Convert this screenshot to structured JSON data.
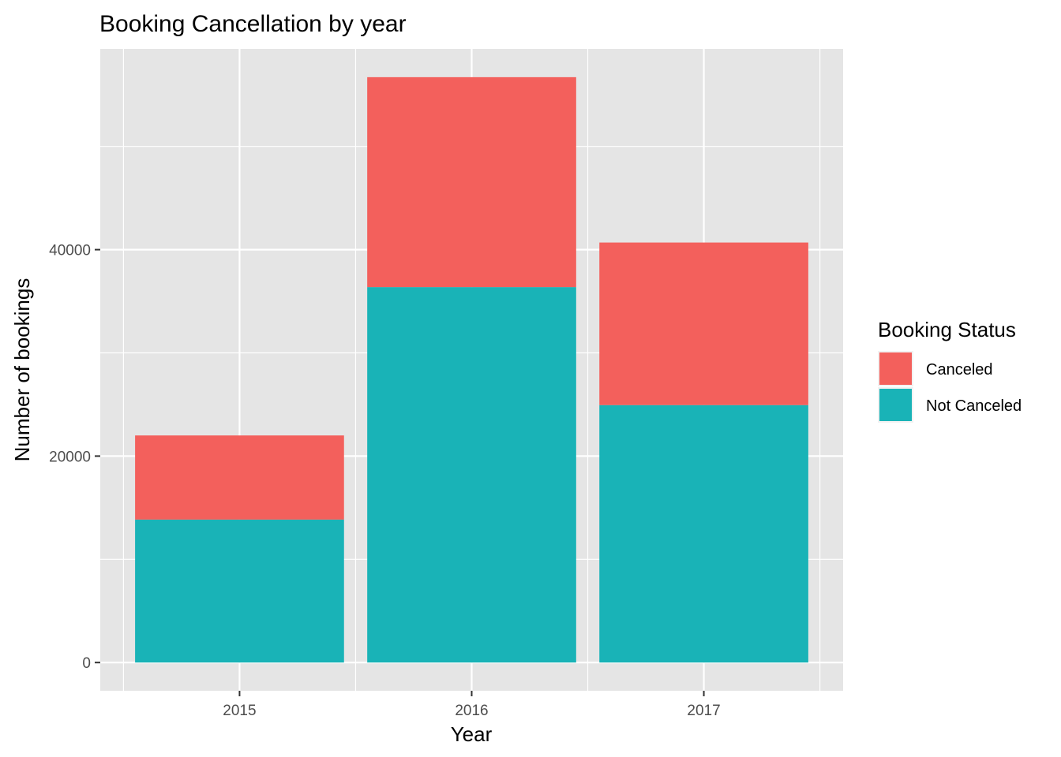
{
  "chart_data": {
    "type": "bar",
    "stacked": true,
    "title": "Booking Cancellation by year",
    "xlabel": "Year",
    "ylabel": "Number of bookings",
    "categories": [
      "2015",
      "2016",
      "2017"
    ],
    "series": [
      {
        "name": "Not Canceled",
        "color": "#19b3b7",
        "values": [
          13850,
          36370,
          24940
        ]
      },
      {
        "name": "Canceled",
        "color": "#f3605c",
        "values": [
          8150,
          20340,
          15750
        ]
      }
    ],
    "y_ticks": [
      0,
      20000,
      40000
    ],
    "ylim": [
      -2735,
      59450
    ],
    "grid": true,
    "legend": {
      "title": "Booking Status",
      "position": "right",
      "entries": [
        "Canceled",
        "Not Canceled"
      ]
    },
    "panel_background": "#e5e5e5",
    "grid_color": "#ffffff"
  }
}
